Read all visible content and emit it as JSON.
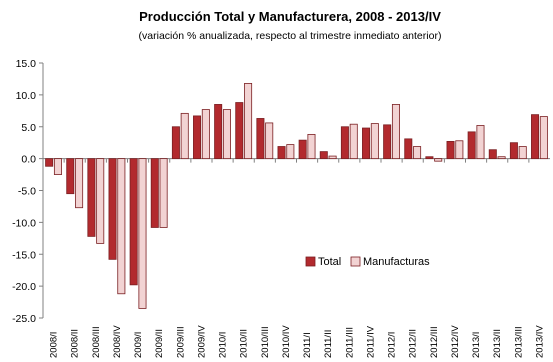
{
  "chart_data": {
    "type": "bar",
    "title": "Producción Total y Manufacturera, 2008 - 2013/IV",
    "subtitle": "(variación % anualizada,  respecto al trimestre inmediato  anterior)",
    "categories": [
      "2008/I",
      "2008/II",
      "2008/III",
      "2008/IV",
      "2009/I",
      "2009/II",
      "2009/III",
      "2009/IV",
      "2010/I",
      "2010/II",
      "2010/III",
      "2010/IV",
      "2011/I",
      "2011/II",
      "2011/III",
      "2011/IV",
      "2012/I",
      "2012/II",
      "2012/III",
      "2012/IV",
      "2013/I",
      "2013/II",
      "2013/III",
      "2013/IV"
    ],
    "series": [
      {
        "name": "Total",
        "color": "#b22a2e",
        "values": [
          -1.2,
          -5.5,
          -12.2,
          -15.8,
          -19.8,
          -10.8,
          5.0,
          6.7,
          8.5,
          8.8,
          6.3,
          1.9,
          2.9,
          1.1,
          5.0,
          4.8,
          5.3,
          3.1,
          0.3,
          2.7,
          4.2,
          1.4,
          2.5,
          6.9
        ]
      },
      {
        "name": "Manufacturas",
        "color": "#f2d3d3",
        "values": [
          -2.5,
          -7.7,
          -13.3,
          -21.2,
          -23.5,
          -10.8,
          7.1,
          7.7,
          7.7,
          11.8,
          5.6,
          2.2,
          3.8,
          0.4,
          5.4,
          5.5,
          8.5,
          1.9,
          -0.4,
          2.8,
          5.2,
          0.3,
          1.9,
          6.6
        ]
      }
    ],
    "ylim": [
      -25,
      15
    ],
    "yticks": [
      "15.0",
      "10.0",
      "5.0",
      "0.0",
      "-5.0",
      "-10.0",
      "-15.0",
      "-20.0",
      "-25.0"
    ],
    "ytick_values": [
      15,
      10,
      5,
      0,
      -5,
      -10,
      -15,
      -20,
      -25
    ],
    "grid": false,
    "legend_position": "lower-right-center"
  }
}
